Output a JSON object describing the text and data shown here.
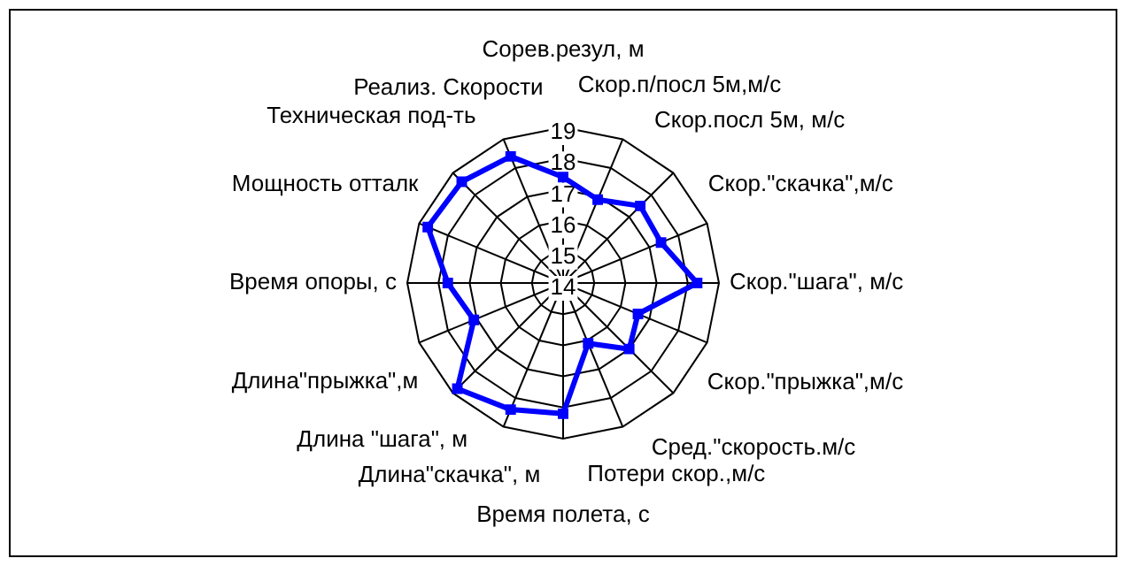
{
  "chart_data": {
    "type": "radar",
    "categories": [
      "Сорев.резул, м",
      "Скор.п/посл 5м,м/с",
      "Скор.посл 5м, м/с",
      "Скор.\"скачка\",м/с",
      "Скор.\"шага\", м/с",
      "Скор.\"прыжка\",м/с",
      "Сред.\"скорость.м/с",
      "Потери скор.,м/с",
      "Время полета, с",
      "Длина\"скачка\", м",
      "Длина \"шага\", м",
      "Длина\"прыжка\",м",
      "Время опоры, с",
      "Мощность отталк",
      "Техническая под-ть",
      "Реализ. Скорости"
    ],
    "series": [
      {
        "color": "#0000ff",
        "values": [
          17.4,
          16.9,
          17.5,
          17.4,
          18.3,
          16.6,
          17.0,
          16.1,
          18.2,
          18.4,
          18.8,
          17.1,
          17.7,
          18.7,
          18.6,
          18.4
        ]
      }
    ],
    "ylim": [
      14,
      19
    ],
    "yticks": [
      14,
      15,
      16,
      17,
      18,
      19
    ],
    "grid": true,
    "legend": false,
    "marker": "square",
    "line_style": "solid"
  }
}
